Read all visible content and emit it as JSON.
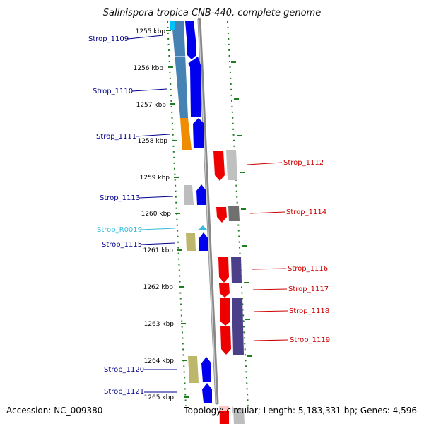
{
  "title": "Salinispora tropica CNB-440, complete genome",
  "accession": "Accession: NC_009380",
  "summary": "Topology: circular; Length: 5,183,331 bp; Genes: 4,596",
  "colors": {
    "backbone": "#8a8a8a",
    "tick": "#1e7d1e",
    "cds_forward": "#0000ee",
    "cds_reverse": "#ee0000",
    "label_forward": "#00008b",
    "label_reverse": "#cc0000",
    "label_rna": "#33bbdd"
  },
  "scale_labels": [
    "1255 kbp",
    "1256 kbp",
    "1257 kbp",
    "1258 kbp",
    "1259 kbp",
    "1260 kbp",
    "1261 kbp",
    "1262 kbp",
    "1263 kbp",
    "1264 kbp",
    "1265 kbp"
  ],
  "gene_labels": [
    {
      "text": "Strop_1109",
      "strand": "forward"
    },
    {
      "text": "Strop_1110",
      "strand": "forward"
    },
    {
      "text": "Strop_1111",
      "strand": "forward"
    },
    {
      "text": "Strop_1112",
      "strand": "reverse"
    },
    {
      "text": "Strop_1113",
      "strand": "forward"
    },
    {
      "text": "Strop_1114",
      "strand": "reverse"
    },
    {
      "text": "Strop_R0019",
      "strand": "rna"
    },
    {
      "text": "Strop_1115",
      "strand": "forward"
    },
    {
      "text": "Strop_1116",
      "strand": "reverse"
    },
    {
      "text": "Strop_1117",
      "strand": "reverse"
    },
    {
      "text": "Strop_1118",
      "strand": "reverse"
    },
    {
      "text": "Strop_1119",
      "strand": "reverse"
    },
    {
      "text": "Strop_1120",
      "strand": "forward"
    },
    {
      "text": "Strop_1121",
      "strand": "forward"
    }
  ]
}
